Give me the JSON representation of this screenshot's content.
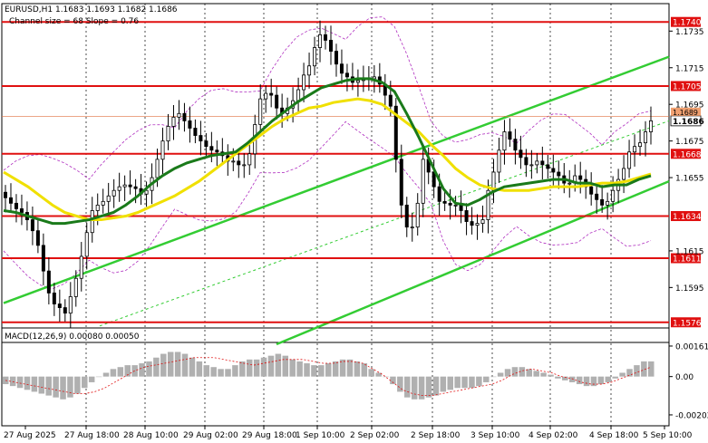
{
  "header": {
    "symbol_line": "EURUSD,H1  1.1683 1.1693 1.1682 1.1686",
    "channel_line": "Channel size = 68 Slope = 0.76"
  },
  "macd_header": {
    "label": "MACD(12,26,9) 0.00080 0.00050"
  },
  "colors": {
    "candle": "#000000",
    "ma_fast": "#1a7a1a",
    "ma_slow": "#f0e000",
    "channel": "#33cc33",
    "level_line": "#e01010",
    "level_label_bg": "#e01010",
    "envelope": "#b030c0",
    "grid": "#000000",
    "macd_hist": "#b0b0b0",
    "macd_signal": "#e01010"
  },
  "chart_data": {
    "type": "candlestick",
    "ylim": [
      1.1565,
      1.175
    ],
    "y_ticks": [
      "1.1735",
      "1.1715",
      "1.1695",
      "1.1675",
      "1.1655",
      "1.1615",
      "1.1595"
    ],
    "current_price_label": "1.1686",
    "current_price": 1.1686,
    "upper_marker_label": "1.1689",
    "upper_marker_price": 1.16885,
    "levels": [
      {
        "price": 1.174,
        "label": "1.1740"
      },
      {
        "price": 1.1705,
        "label": "1.1705"
      },
      {
        "price": 1.1668,
        "label": "1.1668"
      },
      {
        "price": 1.1634,
        "label": "1.1634"
      },
      {
        "price": 1.1611,
        "label": "1.1611"
      },
      {
        "price": 1.1576,
        "label": "1.1576"
      }
    ],
    "x_labels": [
      "27 Aug 2025",
      "27 Aug 18:00",
      "28 Aug 10:00",
      "29 Aug 02:00",
      "29 Aug 18:00",
      "1 Sep 10:00",
      "2 Sep 02:00",
      "2 Sep 18:00",
      "3 Sep 10:00",
      "4 Sep 02:00",
      "4 Sep 18:00",
      "5 Sep 10:00"
    ],
    "closes": [
      1.1644,
      1.1641,
      1.1638,
      1.1636,
      1.1632,
      1.1626,
      1.1618,
      1.1604,
      1.1592,
      1.1586,
      1.1584,
      1.1581,
      1.159,
      1.16,
      1.1612,
      1.1625,
      1.1637,
      1.164,
      1.1642,
      1.1645,
      1.1648,
      1.165,
      1.1651,
      1.165,
      1.1649,
      1.1646,
      1.1648,
      1.1655,
      1.1665,
      1.1675,
      1.1683,
      1.1688,
      1.169,
      1.1686,
      1.1682,
      1.1678,
      1.1675,
      1.1672,
      1.167,
      1.1669,
      1.1667,
      1.1664,
      1.1664,
      1.1662,
      1.1662,
      1.1668,
      1.1684,
      1.1698,
      1.1701,
      1.17,
      1.1693,
      1.169,
      1.1693,
      1.1697,
      1.1703,
      1.1711,
      1.1716,
      1.1726,
      1.1733,
      1.173,
      1.1724,
      1.1717,
      1.1712,
      1.171,
      1.1707,
      1.1708,
      1.1709,
      1.1709,
      1.171,
      1.1706,
      1.17,
      1.1694,
      1.1665,
      1.164,
      1.1628,
      1.1628,
      1.1641,
      1.1665,
      1.1658,
      1.165,
      1.1642,
      1.1641,
      1.164,
      1.164,
      1.1637,
      1.1631,
      1.1629,
      1.163,
      1.1632,
      1.1648,
      1.1658,
      1.167,
      1.168,
      1.1676,
      1.167,
      1.1666,
      1.1662,
      1.1662,
      1.1664,
      1.1662,
      1.166,
      1.1658,
      1.1656,
      1.1652,
      1.1652,
      1.1656,
      1.1654,
      1.165,
      1.1646,
      1.1643,
      1.164,
      1.1642,
      1.1648,
      1.1654,
      1.166,
      1.1669,
      1.1672,
      1.1674,
      1.168,
      1.1686
    ],
    "ma_fast": [
      1.1637,
      1.1636,
      1.1634,
      1.1632,
      1.163,
      1.163,
      1.1631,
      1.1632,
      1.1634,
      1.1636,
      1.164,
      1.1645,
      1.1651,
      1.1656,
      1.166,
      1.1663,
      1.1665,
      1.1667,
      1.1668,
      1.1669,
      1.1674,
      1.168,
      1.1686,
      1.1691,
      1.1696,
      1.17,
      1.1704,
      1.1706,
      1.1708,
      1.1709,
      1.1709,
      1.1707,
      1.1702,
      1.169,
      1.1677,
      1.1663,
      1.1649,
      1.1641,
      1.164,
      1.1643,
      1.1647,
      1.165,
      1.1651,
      1.1652,
      1.1653,
      1.1654,
      1.1654,
      1.1652,
      1.1652,
      1.165,
      1.1651,
      1.1651,
      1.1654,
      1.1656
    ],
    "ma_slow": [
      1.1658,
      1.1654,
      1.165,
      1.1645,
      1.164,
      1.1636,
      1.1634,
      1.1632,
      1.1632,
      1.1633,
      1.1634,
      1.1636,
      1.1639,
      1.1642,
      1.1645,
      1.1649,
      1.1653,
      1.1658,
      1.1663,
      1.1668,
      1.1673,
      1.1678,
      1.1683,
      1.1687,
      1.169,
      1.1693,
      1.1694,
      1.1696,
      1.1697,
      1.1698,
      1.1697,
      1.1695,
      1.169,
      1.1685,
      1.168,
      1.1673,
      1.1667,
      1.166,
      1.1655,
      1.1651,
      1.1649,
      1.1648,
      1.1648,
      1.1648,
      1.1649,
      1.165,
      1.165,
      1.165,
      1.1651,
      1.1652,
      1.1652,
      1.1653,
      1.1655,
      1.1657
    ],
    "macd_ylim": [
      -0.0025,
      0.0018
    ],
    "macd_ticks": [
      "0.00161",
      "0.00",
      "-0.00202"
    ],
    "macd_hist": [
      -0.0004,
      -0.0005,
      -0.0006,
      -0.0007,
      -0.0008,
      -0.0009,
      -0.001,
      -0.0011,
      -0.0012,
      -0.0011,
      -0.0009,
      -0.0006,
      -0.0003,
      0.0,
      0.0002,
      0.0004,
      0.0005,
      0.0006,
      0.0006,
      0.0007,
      0.0008,
      0.001,
      0.0012,
      0.0013,
      0.0013,
      0.0012,
      0.001,
      0.0008,
      0.0006,
      0.0005,
      0.0004,
      0.0004,
      0.0006,
      0.0008,
      0.0009,
      0.0009,
      0.001,
      0.0011,
      0.0012,
      0.0011,
      0.0009,
      0.0008,
      0.0007,
      0.0006,
      0.0006,
      0.0007,
      0.0008,
      0.0009,
      0.0009,
      0.0008,
      0.0007,
      0.0004,
      0.0002,
      0.0,
      -0.0004,
      -0.0008,
      -0.0011,
      -0.0012,
      -0.0012,
      -0.0011,
      -0.001,
      -0.0008,
      -0.0007,
      -0.0006,
      -0.0006,
      -0.0006,
      -0.0005,
      -0.0003,
      0.0,
      0.0002,
      0.0004,
      0.0005,
      0.0005,
      0.0004,
      0.0003,
      0.0002,
      0.0001,
      -0.0001,
      -0.0002,
      -0.0003,
      -0.0004,
      -0.0005,
      -0.0005,
      -0.0004,
      -0.0003,
      -0.0001,
      0.0002,
      0.0004,
      0.0006,
      0.0008,
      0.0008
    ],
    "macd_signal": [
      -0.0002,
      -0.0003,
      -0.0004,
      -0.0005,
      -0.0006,
      -0.0007,
      -0.0008,
      -0.0009,
      -0.0009,
      -0.0008,
      -0.0006,
      -0.0003,
      0.0,
      0.0003,
      0.0005,
      0.0006,
      0.0007,
      0.0008,
      0.0009,
      0.001,
      0.001,
      0.001,
      0.0009,
      0.0008,
      0.0007,
      0.0006,
      0.0007,
      0.0008,
      0.0009,
      0.0009,
      0.0009,
      0.0008,
      0.0007,
      0.0007,
      0.0008,
      0.0008,
      0.0007,
      0.0004,
      0.0001,
      -0.0003,
      -0.0007,
      -0.0009,
      -0.001,
      -0.001,
      -0.0009,
      -0.0008,
      -0.0007,
      -0.0006,
      -0.0005,
      -0.0004,
      -0.0002,
      0.0001,
      0.0003,
      0.0004,
      0.0003,
      0.0002,
      0.0,
      -0.0001,
      -0.0003,
      -0.0004,
      -0.0004,
      -0.0003,
      -0.0001,
      0.0001,
      0.0003,
      0.0005
    ]
  }
}
